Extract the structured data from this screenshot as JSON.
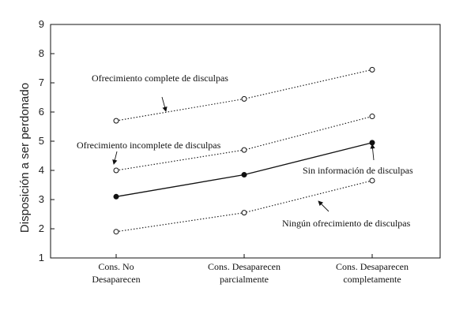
{
  "chart_data": {
    "type": "line",
    "ylabel": "Disposición a ser perdonado",
    "xlabel": "",
    "title": "",
    "ylim": [
      1,
      9
    ],
    "yticks": [
      1,
      2,
      3,
      4,
      5,
      6,
      7,
      8,
      9
    ],
    "grid": false,
    "categories": [
      [
        "Cons. No",
        "Desaparecen"
      ],
      [
        "Cons. Desaparecen",
        "parcialmente"
      ],
      [
        "Cons. Desaparecen",
        "completamente"
      ]
    ],
    "series": [
      {
        "name": "Ofrecimiento complete de disculpas",
        "values": [
          5.7,
          6.45,
          7.45
        ],
        "line": "dotted",
        "marker": "open"
      },
      {
        "name": "Ofrecimiento incomplete de disculpas",
        "values": [
          4.0,
          4.7,
          5.85
        ],
        "line": "dotted",
        "marker": "open"
      },
      {
        "name": "Sin información de disculpas",
        "values": [
          3.1,
          3.85,
          4.95
        ],
        "line": "solid",
        "marker": "filled"
      },
      {
        "name": "Ningún ofrecimiento de disculpas",
        "values": [
          1.9,
          2.55,
          3.65
        ],
        "line": "dotted",
        "marker": "open"
      }
    ]
  }
}
